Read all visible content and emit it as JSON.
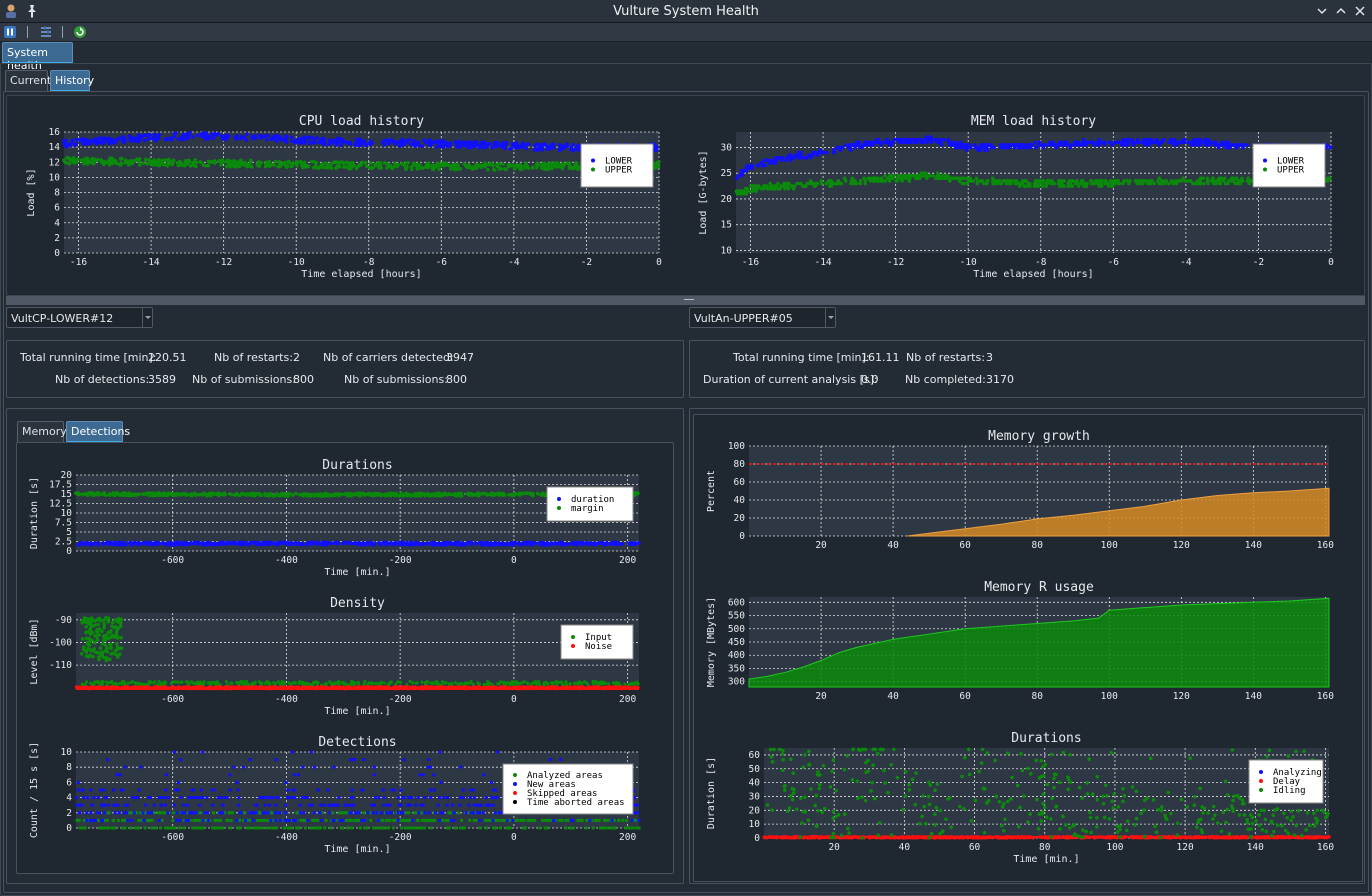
{
  "window": {
    "title": "Vulture System Health"
  },
  "toolbar": {
    "buttons": [
      "pause-icon",
      "settings-icon",
      "refresh-icon"
    ]
  },
  "main_tab": {
    "label": "System health"
  },
  "history_tabs": [
    {
      "label": "Current"
    },
    {
      "label": "History"
    }
  ],
  "colors": {
    "blue": "#1010ff",
    "green": "#0b8a0b",
    "red": "#ff1010",
    "orange": "#d48a22",
    "plot_bg": "#2e3744",
    "accent": "#3daee9"
  },
  "left": {
    "combo_value": "VultCP-LOWER#12",
    "stats": {
      "total_running_label": "Total running time [min]:",
      "total_running_value": "220.51",
      "restarts_label": "Nb of restarts:",
      "restarts_value": "2",
      "carriers_label": "Nb of carriers detected:",
      "carriers_value": "3947",
      "detections_label": "Nb of detections:",
      "detections_value": "3589",
      "submissions_label_1": "Nb of submissions:",
      "submissions_value_1": "800",
      "submissions_label_2": "Nb of submissions:",
      "submissions_value_2": "800"
    },
    "tabs": [
      {
        "label": "Memory"
      },
      {
        "label": "Detections"
      }
    ]
  },
  "right": {
    "combo_value": "VultAn-UPPER#05",
    "stats": {
      "total_running_label": "Total running time [min]:",
      "total_running_value": "161.11",
      "restarts_label": "Nb of restarts:",
      "restarts_value": "3",
      "duration_label": "Duration of current analysis [s]:",
      "duration_value": "0.0",
      "completed_label": "Nb completed:",
      "completed_value": "3170"
    }
  },
  "chart_data": [
    {
      "id": "cpu",
      "type": "scatter",
      "title": "CPU load history",
      "xlabel": "Time elapsed [hours]",
      "ylabel": "Load [%]",
      "xlim": [
        -16.4,
        0
      ],
      "ylim": [
        0,
        16
      ],
      "xticks": [
        -16,
        -14,
        -12,
        -10,
        -8,
        -6,
        -4,
        -2,
        0
      ],
      "yticks": [
        0,
        2,
        4,
        6,
        8,
        10,
        12,
        14,
        16
      ],
      "legend": "top-right",
      "series": [
        {
          "name": "LOWER",
          "color": "blue",
          "x": [
            -16.4,
            -15,
            -13,
            -11,
            -9,
            -7,
            -5,
            -3,
            -1,
            0
          ],
          "y": [
            14.5,
            15,
            15.5,
            15.3,
            14.7,
            14.6,
            14.3,
            14,
            13.9,
            14
          ]
        },
        {
          "name": "UPPER",
          "color": "green",
          "x": [
            -16.4,
            -15,
            -13,
            -11,
            -9,
            -7,
            -5,
            -3,
            -1,
            0
          ],
          "y": [
            12.2,
            12.1,
            11.9,
            11.8,
            11.6,
            11.5,
            11.4,
            11.5,
            11.6,
            11.6
          ]
        }
      ]
    },
    {
      "id": "mem",
      "type": "scatter",
      "title": "MEM load history",
      "xlabel": "Time elapsed [hours]",
      "ylabel": "Load [G-bytes]",
      "xlim": [
        -16.4,
        0
      ],
      "ylim": [
        9.5,
        33
      ],
      "xticks": [
        -16,
        -14,
        -12,
        -10,
        -8,
        -6,
        -4,
        -2,
        0
      ],
      "yticks": [
        10,
        15,
        20,
        25,
        30
      ],
      "legend": "top-right",
      "series": [
        {
          "name": "LOWER",
          "color": "blue",
          "x": [
            -16.4,
            -16,
            -15,
            -14,
            -13,
            -12,
            -11,
            -10,
            -8,
            -6,
            -4,
            -2,
            0
          ],
          "y": [
            24,
            26.5,
            28,
            29,
            30.5,
            31.2,
            31.5,
            30,
            30.5,
            31,
            31.2,
            30,
            30
          ]
        },
        {
          "name": "UPPER",
          "color": "green",
          "x": [
            -16.4,
            -16,
            -15,
            -14,
            -13,
            -12,
            -11,
            -10,
            -8,
            -6,
            -4,
            -2,
            0
          ],
          "y": [
            21,
            22,
            22.5,
            23,
            23.5,
            24,
            24.5,
            23.5,
            23,
            23.2,
            23.5,
            23.5,
            24
          ]
        }
      ]
    },
    {
      "id": "durations_left",
      "type": "scatter",
      "title": "Durations",
      "xlabel": "Time [min.]",
      "ylabel": "Duration [s]",
      "xlim": [
        -770,
        220
      ],
      "ylim": [
        0,
        20
      ],
      "xticks": [
        -600,
        -400,
        -200,
        0,
        200
      ],
      "yticks": [
        0,
        2.5,
        5,
        7.5,
        10,
        12.5,
        15,
        17.5,
        20
      ],
      "legend": "top-right",
      "series": [
        {
          "name": "duration",
          "color": "blue",
          "x": [
            -770,
            -400,
            0,
            220
          ],
          "y": [
            1.9,
            2,
            1.9,
            2
          ]
        },
        {
          "name": "margin",
          "color": "green",
          "x": [
            -770,
            -400,
            0,
            220
          ],
          "y": [
            15,
            14.8,
            14.9,
            15
          ]
        }
      ]
    },
    {
      "id": "density",
      "type": "scatter",
      "title": "Density",
      "xlabel": "Time [min.]",
      "ylabel": "Level [dBm]",
      "xlim": [
        -770,
        220
      ],
      "ylim": [
        -121,
        -87
      ],
      "xticks": [
        -600,
        -400,
        -200,
        0,
        200
      ],
      "yticks": [
        -110,
        -100,
        -90
      ],
      "legend": "top-right",
      "series": [
        {
          "name": "Input",
          "color": "green",
          "x": [
            -770,
            -740,
            -720,
            -700,
            -400,
            0,
            220
          ],
          "y": [
            -118,
            -97,
            -92,
            -100,
            -118,
            -118,
            -118
          ]
        },
        {
          "name": "Noise",
          "color": "red",
          "x": [
            -770,
            220
          ],
          "y": [
            -120,
            -120
          ]
        }
      ]
    },
    {
      "id": "detections",
      "type": "scatter",
      "title": "Detections",
      "xlabel": "Time [min.]",
      "ylabel": "Count / 15 s [s]",
      "xlim": [
        -770,
        220
      ],
      "ylim": [
        0,
        10
      ],
      "xticks": [
        -600,
        -400,
        -200,
        0,
        200
      ],
      "yticks": [
        0,
        2,
        4,
        6,
        8,
        10
      ],
      "legend": "top-right",
      "series": [
        {
          "name": "Analyzed areas",
          "color": "green",
          "x": [
            -770,
            220
          ],
          "y": [
            1,
            1
          ]
        },
        {
          "name": "New areas",
          "color": "blue",
          "x": [
            -770,
            220
          ],
          "y": [
            3,
            3
          ]
        },
        {
          "name": "Skipped areas",
          "color": "red",
          "x": [],
          "y": []
        },
        {
          "name": "Time aborted areas",
          "color": "black",
          "x": [],
          "y": []
        }
      ]
    },
    {
      "id": "memory_growth",
      "type": "area",
      "title": "Memory growth",
      "xlabel": "",
      "ylabel": "Percent",
      "xlim": [
        0,
        161
      ],
      "ylim": [
        0,
        100
      ],
      "xticks": [
        20,
        40,
        60,
        80,
        100,
        120,
        140,
        160
      ],
      "yticks": [
        0,
        20,
        40,
        60,
        80,
        100
      ],
      "threshold": 80,
      "x": [
        44,
        50,
        60,
        70,
        80,
        90,
        100,
        110,
        120,
        130,
        140,
        150,
        161
      ],
      "y": [
        0,
        3,
        8,
        13,
        19,
        23,
        28,
        33,
        40,
        45,
        48,
        50,
        53
      ]
    },
    {
      "id": "memory_r_usage",
      "type": "area",
      "title": "Memory R usage",
      "xlabel": "",
      "ylabel": "Memory [MBytes]",
      "xlim": [
        0,
        161
      ],
      "ylim": [
        280,
        620
      ],
      "xticks": [
        20,
        40,
        60,
        80,
        100,
        120,
        140,
        160
      ],
      "yticks": [
        300,
        350,
        400,
        450,
        500,
        550,
        600
      ],
      "x": [
        0,
        5,
        10,
        15,
        20,
        25,
        30,
        35,
        40,
        50,
        60,
        70,
        80,
        90,
        97,
        100,
        110,
        120,
        130,
        140,
        150,
        161
      ],
      "y": [
        310,
        320,
        335,
        355,
        380,
        410,
        430,
        445,
        460,
        480,
        500,
        510,
        520,
        530,
        540,
        570,
        580,
        590,
        595,
        600,
        605,
        615
      ]
    },
    {
      "id": "durations_right",
      "type": "scatter",
      "title": "Durations",
      "xlabel": "Time [min.]",
      "ylabel": "Duration [s]",
      "xlim": [
        0,
        161
      ],
      "ylim": [
        0,
        65
      ],
      "xticks": [
        20,
        40,
        60,
        80,
        100,
        120,
        140,
        160
      ],
      "yticks": [
        0,
        10,
        20,
        30,
        40,
        50,
        60
      ],
      "legend": "top-right",
      "series": [
        {
          "name": "Analyzing",
          "color": "blue",
          "x": [],
          "y": []
        },
        {
          "name": "Delay",
          "color": "red",
          "x": [
            0,
            161
          ],
          "y": [
            0.5,
            0.5
          ]
        },
        {
          "name": "Idling",
          "color": "green",
          "x": [
            2,
            10,
            20,
            30,
            40,
            50,
            60,
            70,
            80,
            90,
            100,
            110,
            120,
            130,
            140,
            150,
            160
          ],
          "y": [
            40,
            30,
            25,
            45,
            30,
            20,
            35,
            25,
            30,
            20,
            25,
            18,
            15,
            22,
            12,
            10,
            10
          ]
        }
      ]
    }
  ]
}
